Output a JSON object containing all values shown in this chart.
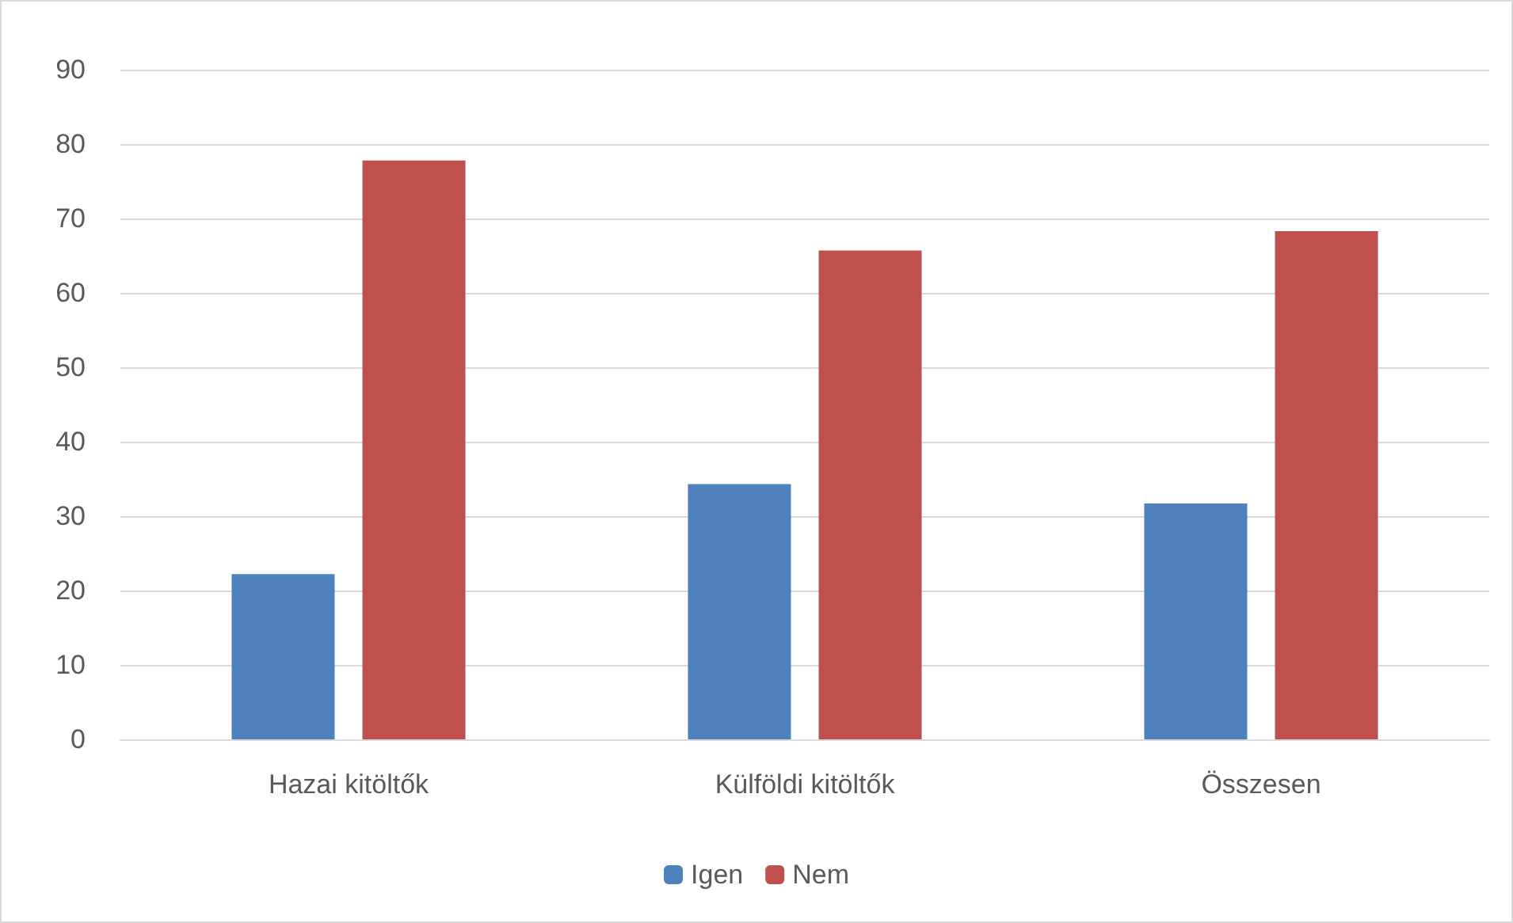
{
  "chart_data": {
    "type": "bar",
    "categories": [
      "Hazai kitöltők",
      "Külföldi kitöltők",
      "Összesen"
    ],
    "series": [
      {
        "name": "Igen",
        "color": "#4f81bd",
        "values": [
          22.2,
          34.3,
          31.7
        ]
      },
      {
        "name": "Nem",
        "color": "#c0504d",
        "values": [
          77.8,
          65.7,
          68.3
        ]
      }
    ],
    "ylim": [
      0,
      90
    ],
    "yticks": [
      0,
      10,
      20,
      30,
      40,
      50,
      60,
      70,
      80,
      90
    ],
    "grid": "y",
    "legend": "bottom"
  }
}
